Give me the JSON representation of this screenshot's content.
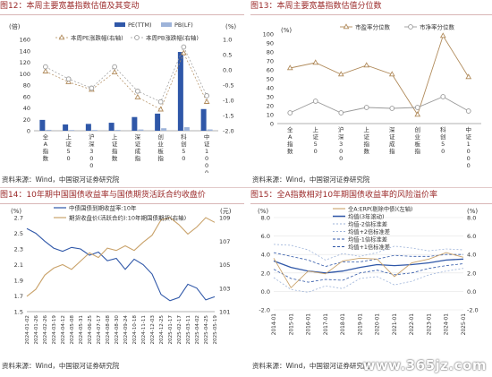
{
  "panels": [
    {
      "title": "图12：本周主要宽基指数估值及其变动",
      "source": "资料来源：Wind，中国银河证券研究院",
      "chart_data": {
        "type": "bar",
        "unit_left": "(倍)",
        "unit_right": "(%)",
        "categories": [
          "全A指数",
          "上证50",
          "沪深300",
          "上证指数",
          "深证成指",
          "创业板指",
          "科创50",
          "中证1000"
        ],
        "ylim_left": [
          0,
          160
        ],
        "yticks_left": [
          0,
          20,
          40,
          60,
          80,
          100,
          120,
          140,
          160
        ],
        "ylim_right": [
          -2,
          1
        ],
        "yticks_right": [
          "-2.0",
          "-1.5",
          "-1.0",
          "-0.5",
          "0.0",
          "0.5",
          "1.0"
        ],
        "legend": [
          "PE(TTM)",
          "PB(LF)",
          "本周PE涨跌幅(右轴)",
          "本周PB涨跌幅(右轴)"
        ],
        "series": [
          {
            "name": "PE(TTM)",
            "axis": "left",
            "color": "#2f57a8",
            "values": [
              19,
              11,
              12,
              14,
              24,
              30,
              138,
              38
            ]
          },
          {
            "name": "PB(LF)",
            "axis": "left",
            "color": "#9db3d9",
            "values": [
              1.6,
              1.2,
              1.3,
              1.4,
              2.2,
              4.4,
              6.2,
              2.3
            ]
          },
          {
            "name": "本周PE涨跌幅(右轴)",
            "axis": "right",
            "color": "#b08a5a",
            "values": [
              -0.05,
              -0.4,
              -0.65,
              -0.08,
              -0.9,
              -1.3,
              0.55,
              -1.05
            ]
          },
          {
            "name": "本周PB涨跌幅(右轴)",
            "axis": "right",
            "color": "#9a9a9a",
            "values": [
              0.1,
              -0.3,
              -0.6,
              0.1,
              -0.7,
              -1.05,
              0.75,
              -0.85
            ]
          }
        ]
      }
    },
    {
      "title": "图13：本周主要宽基指数估值分位数",
      "source": "资料来源：Wind，中国银河证券研究院",
      "chart_data": {
        "type": "line",
        "unit_left": "(%)",
        "categories": [
          "全A指数",
          "上证50",
          "沪深300",
          "上证指数",
          "深证成指",
          "创业板指",
          "科创50",
          "中证1000"
        ],
        "ylim": [
          0,
          100
        ],
        "yticks": [
          0,
          10,
          20,
          30,
          40,
          50,
          60,
          70,
          80,
          90,
          100
        ],
        "legend": [
          "市盈率分位数",
          "市净率分位数"
        ],
        "series": [
          {
            "name": "市盈率分位数",
            "color": "#b08a5a",
            "values": [
              62,
              68,
              55,
              65,
              55,
              10,
              98,
              52
            ]
          },
          {
            "name": "市净率分位数",
            "color": "#9a9a9a",
            "values": [
              12,
              25,
              12,
              18,
              17,
              18,
              30,
              14
            ]
          }
        ]
      }
    },
    {
      "title": "图14：10年期中国国债收益率与国债期货活跃合约收盘价",
      "source": "资料来源：Wind，中国银河证券研究院",
      "chart_data": {
        "type": "line",
        "unit_left": "(%)",
        "unit_right": "(元)",
        "ylim_left": [
          1.5,
          2.7
        ],
        "yticks_left": [
          "1.5",
          "1.7",
          "1.9",
          "2.1",
          "2.3",
          "2.5",
          "2.7"
        ],
        "ylim_right": [
          101,
          109
        ],
        "yticks_right": [
          "101",
          "103",
          "105",
          "107",
          "109"
        ],
        "x": [
          "2024-01-02",
          "2024-01-26",
          "2024-02-26",
          "2024-03-19",
          "2024-04-12",
          "2024-05-08",
          "2024-05-31",
          "2024-06-25",
          "2024-07-17",
          "2024-08-08",
          "2024-08-30",
          "2024-09-24",
          "2024-10-18",
          "2024-11-11",
          "2024-12-03",
          "2024-12-25",
          "2025-01-17",
          "2025-02-17",
          "2025-03-11",
          "2025-04-02",
          "2025-04-25",
          "2025-05-19"
        ],
        "legend": [
          "中债国债到期收益率:10年",
          "期货收盘价(活跃合约):10年期国债期货(右轴)"
        ],
        "series": [
          {
            "name": "中债国债到期收益率:10年",
            "axis": "left",
            "color": "#2f57a8",
            "values": [
              2.56,
              2.5,
              2.4,
              2.31,
              2.27,
              2.32,
              2.3,
              2.22,
              2.26,
              2.15,
              2.18,
              2.04,
              2.17,
              2.1,
              1.98,
              1.72,
              1.64,
              1.68,
              1.85,
              1.8,
              1.65,
              1.69
            ]
          },
          {
            "name": "期货收盘价(活跃合约):10年期国债期货(右轴)",
            "axis": "right",
            "color": "#c9a26a",
            "values": [
              102.3,
              102.9,
              104.1,
              104.7,
              105.0,
              104.6,
              105.3,
              106.0,
              105.6,
              106.4,
              106.2,
              106.6,
              106.2,
              106.9,
              107.5,
              108.8,
              109.0,
              108.4,
              107.6,
              108.2,
              109.0,
              108.6
            ]
          }
        ]
      }
    },
    {
      "title": "图15：全A指数相对10年期国债收益率的风险溢价率",
      "source": "资料来源：Wind，中国银河证券研究院",
      "chart_data": {
        "type": "line",
        "unit_left": "(%)",
        "unit_right": "(%)",
        "ylim": [
          -2,
          8
        ],
        "yticks": [
          "-2.0",
          "0.0",
          "2.0",
          "4.0",
          "6.0",
          "8.0"
        ],
        "x": [
          "2014-01",
          "2015-01",
          "2016-01",
          "2017-01",
          "2018-01",
          "2019-01",
          "2020-01",
          "2021-01",
          "2022-01",
          "2023-01",
          "2024-01",
          "2025-01"
        ],
        "legend": [
          "全A:ERP(剔除中债)(左轴)",
          "均值(3年滚动)",
          "均值-2倍标准差",
          "均值+2倍标准差",
          "均值-1倍标准差",
          "均值+1倍标准差"
        ],
        "series": [
          {
            "name": "全A:ERP(剔除中债)(左轴)",
            "color": "#c9a26a",
            "values": [
              3.6,
              0.4,
              2.2,
              1.9,
              3.3,
              3.6,
              3.5,
              1.6,
              3.1,
              3.5,
              4.2,
              3.7
            ]
          },
          {
            "name": "均值(3年滚动)",
            "color": "#2f57a8",
            "values": [
              3.3,
              2.6,
              2.2,
              2.0,
              2.2,
              2.6,
              2.9,
              2.8,
              2.9,
              3.1,
              3.4,
              3.5
            ]
          },
          {
            "name": "均值-2倍标准差",
            "color": "#9db3d9",
            "values": [
              1.5,
              0.2,
              -0.1,
              0.6,
              0.3,
              1.4,
              1.6,
              0.7,
              1.1,
              1.8,
              2.2,
              2.5
            ]
          },
          {
            "name": "均值+2倍标准差",
            "color": "#9db3d9",
            "values": [
              5.1,
              5.0,
              4.5,
              3.4,
              4.1,
              3.8,
              4.2,
              4.9,
              4.7,
              4.4,
              4.6,
              4.5
            ]
          },
          {
            "name": "均值-1倍标准差",
            "color": "#2f57a8",
            "values": [
              2.4,
              1.4,
              1.0,
              1.3,
              1.2,
              2.0,
              2.3,
              1.8,
              2.0,
              2.5,
              2.8,
              3.0
            ]
          },
          {
            "name": "均值+1倍标准差",
            "color": "#2f57a8",
            "values": [
              4.2,
              3.8,
              3.4,
              2.7,
              3.2,
              3.2,
              3.5,
              3.9,
              3.8,
              3.8,
              4.0,
              4.0
            ]
          }
        ]
      }
    }
  ],
  "watermark": "www.365jz.com"
}
